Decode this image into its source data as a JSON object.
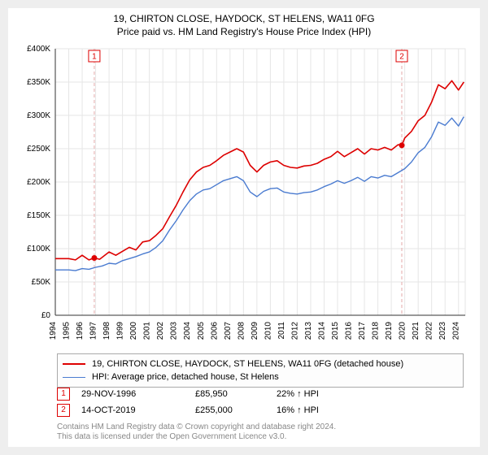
{
  "address_title": "19, CHIRTON CLOSE, HAYDOCK, ST HELENS, WA11 0FG",
  "subtitle": "Price paid vs. HM Land Registry's House Price Index (HPI)",
  "chart": {
    "type": "line",
    "background_color": "#ffffff",
    "plot_bg": "#ffffff",
    "grid_color": "#e6e6e6",
    "axis_color": "#333333",
    "x_years": [
      1994,
      1995,
      1996,
      1997,
      1998,
      1999,
      2000,
      2001,
      2002,
      2003,
      2004,
      2005,
      2006,
      2007,
      2008,
      2009,
      2010,
      2011,
      2012,
      2013,
      2014,
      2015,
      2016,
      2017,
      2018,
      2019,
      2020,
      2021,
      2022,
      2023,
      2024
    ],
    "x_tick_fontsize": 10,
    "x_tick_color": "#000000",
    "x_tick_rotation": -90,
    "y_ticks": [
      0,
      50000,
      100000,
      150000,
      200000,
      250000,
      300000,
      350000,
      400000
    ],
    "y_tick_labels": [
      "£0",
      "£50K",
      "£100K",
      "£150K",
      "£200K",
      "£250K",
      "£300K",
      "£350K",
      "£400K"
    ],
    "y_tick_fontsize": 10,
    "y_tick_color": "#000000",
    "ylim": [
      0,
      400000
    ],
    "series": [
      {
        "name": "property",
        "color": "#dd0000",
        "width": 1.6,
        "data": [
          [
            1994.0,
            85000
          ],
          [
            1995.0,
            85000
          ],
          [
            1995.5,
            83000
          ],
          [
            1996.0,
            90000
          ],
          [
            1996.5,
            83000
          ],
          [
            1996.9,
            86000
          ],
          [
            1997.3,
            84000
          ],
          [
            1998.0,
            95000
          ],
          [
            1998.5,
            90000
          ],
          [
            1999.0,
            96000
          ],
          [
            1999.5,
            102000
          ],
          [
            2000.0,
            98000
          ],
          [
            2000.5,
            110000
          ],
          [
            2001.0,
            112000
          ],
          [
            2001.5,
            120000
          ],
          [
            2002.0,
            130000
          ],
          [
            2002.5,
            148000
          ],
          [
            2003.0,
            165000
          ],
          [
            2003.5,
            185000
          ],
          [
            2004.0,
            203000
          ],
          [
            2004.5,
            215000
          ],
          [
            2005.0,
            222000
          ],
          [
            2005.5,
            225000
          ],
          [
            2006.0,
            232000
          ],
          [
            2006.5,
            240000
          ],
          [
            2007.0,
            245000
          ],
          [
            2007.5,
            250000
          ],
          [
            2008.0,
            245000
          ],
          [
            2008.5,
            225000
          ],
          [
            2009.0,
            215000
          ],
          [
            2009.5,
            225000
          ],
          [
            2010.0,
            230000
          ],
          [
            2010.5,
            232000
          ],
          [
            2011.0,
            225000
          ],
          [
            2011.5,
            222000
          ],
          [
            2012.0,
            221000
          ],
          [
            2012.5,
            224000
          ],
          [
            2013.0,
            225000
          ],
          [
            2013.5,
            228000
          ],
          [
            2014.0,
            234000
          ],
          [
            2014.5,
            238000
          ],
          [
            2015.0,
            246000
          ],
          [
            2015.5,
            238000
          ],
          [
            2016.0,
            244000
          ],
          [
            2016.5,
            250000
          ],
          [
            2017.0,
            242000
          ],
          [
            2017.5,
            250000
          ],
          [
            2018.0,
            248000
          ],
          [
            2018.5,
            252000
          ],
          [
            2019.0,
            248000
          ],
          [
            2019.5,
            256000
          ],
          [
            2019.78,
            255000
          ],
          [
            2020.0,
            266000
          ],
          [
            2020.5,
            276000
          ],
          [
            2021.0,
            292000
          ],
          [
            2021.5,
            300000
          ],
          [
            2022.0,
            320000
          ],
          [
            2022.5,
            346000
          ],
          [
            2023.0,
            340000
          ],
          [
            2023.5,
            352000
          ],
          [
            2024.0,
            338000
          ],
          [
            2024.4,
            350000
          ]
        ]
      },
      {
        "name": "hpi",
        "color": "#4a7bd0",
        "width": 1.4,
        "data": [
          [
            1994.0,
            68000
          ],
          [
            1995.0,
            68000
          ],
          [
            1995.5,
            67000
          ],
          [
            1996.0,
            70000
          ],
          [
            1996.5,
            69000
          ],
          [
            1997.0,
            72000
          ],
          [
            1997.5,
            74000
          ],
          [
            1998.0,
            78000
          ],
          [
            1998.5,
            77000
          ],
          [
            1999.0,
            82000
          ],
          [
            1999.5,
            85000
          ],
          [
            2000.0,
            88000
          ],
          [
            2000.5,
            92000
          ],
          [
            2001.0,
            95000
          ],
          [
            2001.5,
            102000
          ],
          [
            2002.0,
            112000
          ],
          [
            2002.5,
            128000
          ],
          [
            2003.0,
            142000
          ],
          [
            2003.5,
            158000
          ],
          [
            2004.0,
            172000
          ],
          [
            2004.5,
            182000
          ],
          [
            2005.0,
            188000
          ],
          [
            2005.5,
            190000
          ],
          [
            2006.0,
            196000
          ],
          [
            2006.5,
            202000
          ],
          [
            2007.0,
            205000
          ],
          [
            2007.5,
            208000
          ],
          [
            2008.0,
            202000
          ],
          [
            2008.5,
            185000
          ],
          [
            2009.0,
            178000
          ],
          [
            2009.5,
            186000
          ],
          [
            2010.0,
            190000
          ],
          [
            2010.5,
            191000
          ],
          [
            2011.0,
            185000
          ],
          [
            2011.5,
            183000
          ],
          [
            2012.0,
            182000
          ],
          [
            2012.5,
            184000
          ],
          [
            2013.0,
            185000
          ],
          [
            2013.5,
            188000
          ],
          [
            2014.0,
            193000
          ],
          [
            2014.5,
            197000
          ],
          [
            2015.0,
            202000
          ],
          [
            2015.5,
            198000
          ],
          [
            2016.0,
            202000
          ],
          [
            2016.5,
            207000
          ],
          [
            2017.0,
            201000
          ],
          [
            2017.5,
            208000
          ],
          [
            2018.0,
            206000
          ],
          [
            2018.5,
            210000
          ],
          [
            2019.0,
            208000
          ],
          [
            2019.5,
            214000
          ],
          [
            2020.0,
            220000
          ],
          [
            2020.5,
            230000
          ],
          [
            2021.0,
            244000
          ],
          [
            2021.5,
            252000
          ],
          [
            2022.0,
            268000
          ],
          [
            2022.5,
            290000
          ],
          [
            2023.0,
            285000
          ],
          [
            2023.5,
            296000
          ],
          [
            2024.0,
            284000
          ],
          [
            2024.4,
            298000
          ]
        ]
      }
    ],
    "markers": [
      {
        "id": "1",
        "year": 1996.9,
        "value": 85950,
        "box_color": "#dd0000",
        "text_color": "#dd0000"
      },
      {
        "id": "2",
        "year": 2019.78,
        "value": 255000,
        "box_color": "#dd0000",
        "text_color": "#dd0000"
      }
    ],
    "marker_line_color": "#e6aaaa",
    "marker_line_dash": "4 3",
    "marker_dot_radius": 3.5,
    "marker_box": {
      "w": 14,
      "h": 14,
      "fontsize": 10,
      "fill": "#ffffff"
    }
  },
  "legend": {
    "border_color": "#aaaaaa",
    "bg": "#fdfdfd",
    "font_size": 11,
    "items": [
      {
        "color": "#dd0000",
        "width": 2,
        "label": "19, CHIRTON CLOSE, HAYDOCK, ST HELENS, WA11 0FG (detached house)"
      },
      {
        "color": "#4a7bd0",
        "width": 1.5,
        "label": "HPI: Average price, detached house, St Helens"
      }
    ]
  },
  "marker_table": {
    "font_size": 11,
    "rows": [
      {
        "id": "1",
        "box_color": "#dd0000",
        "date": "29-NOV-1996",
        "price": "£85,950",
        "pct": "22% ↑ HPI"
      },
      {
        "id": "2",
        "box_color": "#dd0000",
        "date": "14-OCT-2019",
        "price": "£255,000",
        "pct": "16% ↑ HPI"
      }
    ]
  },
  "footer": {
    "color": "#888888",
    "font_size": 10,
    "line1": "Contains HM Land Registry data © Crown copyright and database right 2024.",
    "line2": "This data is licensed under the Open Government Licence v3.0."
  }
}
